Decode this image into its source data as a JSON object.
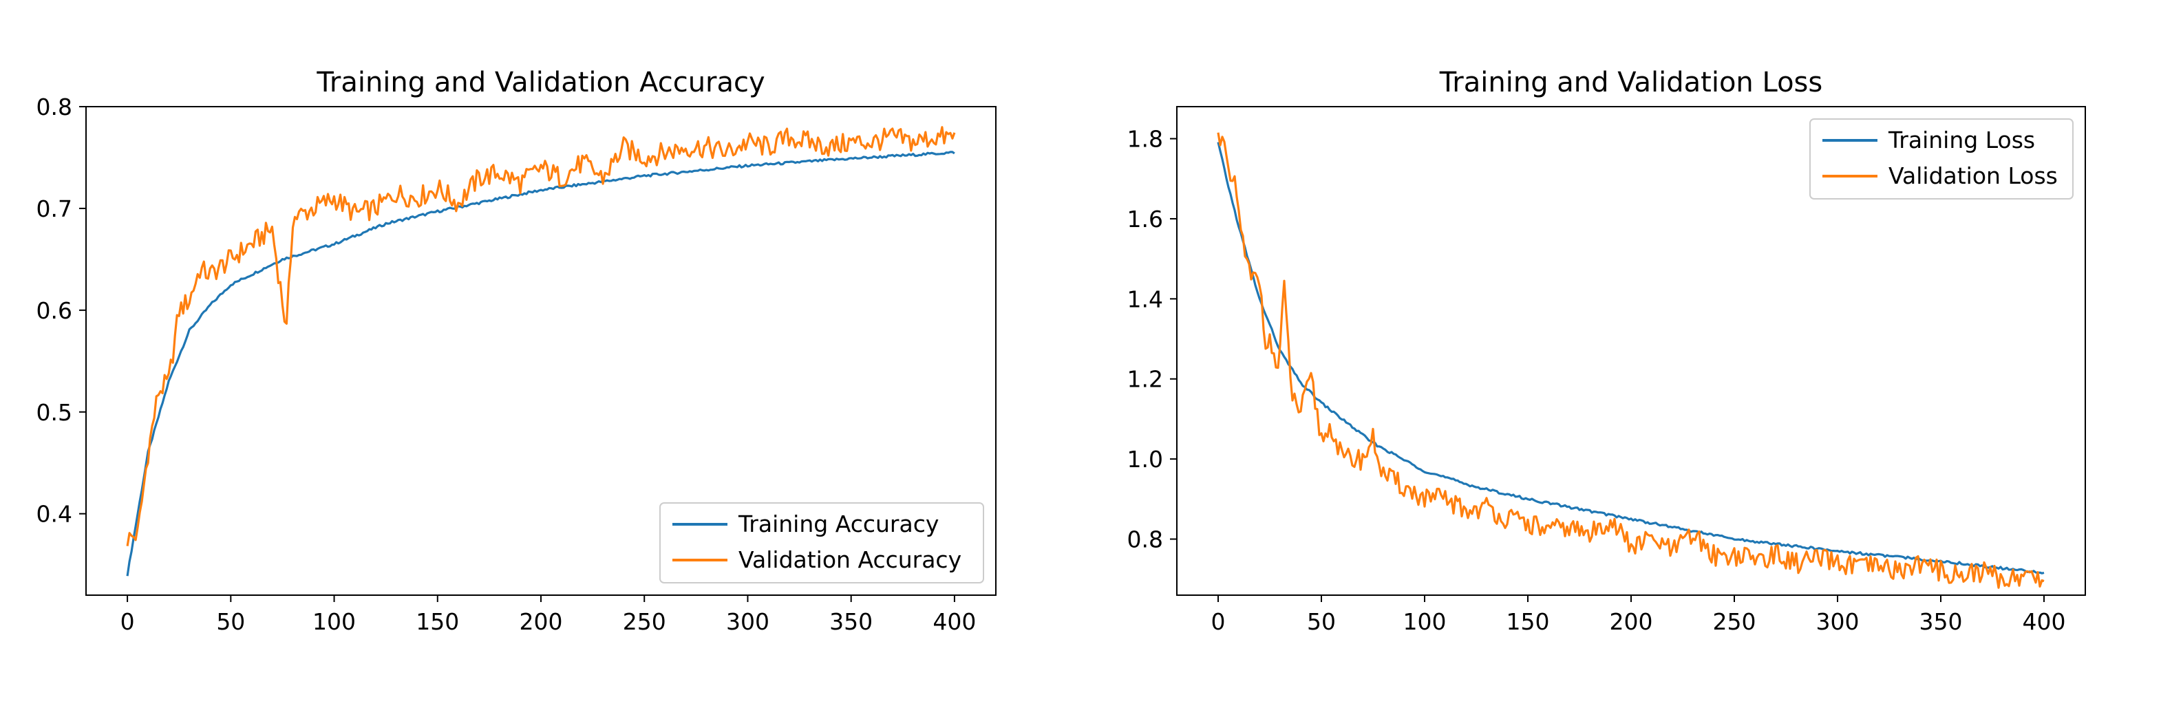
{
  "chart_data": [
    {
      "type": "line",
      "title": "Training and Validation Accuracy",
      "xlabel": "",
      "ylabel": "",
      "xlim": [
        -20,
        420
      ],
      "ylim": [
        0.32,
        0.8
      ],
      "xticks": [
        0,
        50,
        100,
        150,
        200,
        250,
        300,
        350,
        400
      ],
      "yticks": [
        0.4,
        0.5,
        0.6,
        0.7,
        0.8
      ],
      "ytick_labels": [
        "0.4",
        "0.5",
        "0.6",
        "0.7",
        "0.8"
      ],
      "grid": false,
      "legend_position": "lower right",
      "series": [
        {
          "name": "Training Accuracy",
          "color": "#1f77b4",
          "x": [
            0,
            5,
            10,
            20,
            30,
            40,
            50,
            75,
            100,
            125,
            150,
            200,
            250,
            300,
            350,
            400
          ],
          "y": [
            0.34,
            0.4,
            0.46,
            0.53,
            0.58,
            0.605,
            0.625,
            0.65,
            0.665,
            0.685,
            0.697,
            0.718,
            0.732,
            0.742,
            0.749,
            0.755
          ]
        },
        {
          "name": "Validation Accuracy",
          "color": "#ff7f0e",
          "x": [
            0,
            5,
            10,
            15,
            20,
            25,
            30,
            35,
            40,
            50,
            60,
            70,
            77,
            80,
            90,
            100,
            110,
            120,
            130,
            140,
            150,
            160,
            170,
            180,
            190,
            200,
            210,
            220,
            230,
            240,
            250,
            260,
            270,
            280,
            290,
            300,
            310,
            320,
            330,
            340,
            350,
            360,
            370,
            380,
            390,
            400
          ],
          "y": [
            0.375,
            0.38,
            0.46,
            0.52,
            0.53,
            0.6,
            0.61,
            0.64,
            0.635,
            0.65,
            0.665,
            0.68,
            0.58,
            0.69,
            0.7,
            0.71,
            0.695,
            0.7,
            0.715,
            0.71,
            0.72,
            0.705,
            0.73,
            0.735,
            0.725,
            0.74,
            0.73,
            0.745,
            0.73,
            0.76,
            0.75,
            0.755,
            0.76,
            0.76,
            0.755,
            0.765,
            0.76,
            0.77,
            0.765,
            0.76,
            0.765,
            0.765,
            0.77,
            0.765,
            0.77,
            0.77
          ]
        }
      ]
    },
    {
      "type": "line",
      "title": "Training and Validation Loss",
      "xlabel": "",
      "ylabel": "",
      "xlim": [
        -20,
        420
      ],
      "ylim": [
        0.66,
        1.88
      ],
      "xticks": [
        0,
        50,
        100,
        150,
        200,
        250,
        300,
        350,
        400
      ],
      "yticks": [
        0.8,
        1.0,
        1.2,
        1.4,
        1.6,
        1.8
      ],
      "ytick_labels": [
        "0.8",
        "1.0",
        "1.2",
        "1.4",
        "1.6",
        "1.8"
      ],
      "grid": false,
      "legend_position": "upper right",
      "series": [
        {
          "name": "Training Loss",
          "color": "#1f77b4",
          "x": [
            0,
            5,
            10,
            20,
            30,
            40,
            50,
            75,
            100,
            125,
            150,
            200,
            250,
            300,
            350,
            400
          ],
          "y": [
            1.79,
            1.68,
            1.58,
            1.4,
            1.27,
            1.19,
            1.14,
            1.04,
            0.97,
            0.93,
            0.9,
            0.85,
            0.8,
            0.77,
            0.745,
            0.715
          ]
        },
        {
          "name": "Validation Loss",
          "color": "#ff7f0e",
          "x": [
            0,
            2,
            5,
            8,
            10,
            13,
            16,
            20,
            23,
            26,
            29,
            32,
            36,
            40,
            45,
            50,
            55,
            60,
            70,
            75,
            80,
            90,
            100,
            110,
            120,
            130,
            140,
            150,
            160,
            170,
            180,
            190,
            200,
            210,
            220,
            230,
            240,
            250,
            260,
            270,
            280,
            290,
            300,
            310,
            320,
            330,
            340,
            350,
            360,
            370,
            380,
            390,
            400
          ],
          "y": [
            1.8,
            1.82,
            1.7,
            1.68,
            1.62,
            1.5,
            1.45,
            1.45,
            1.3,
            1.28,
            1.22,
            1.42,
            1.15,
            1.12,
            1.2,
            1.05,
            1.08,
            1.0,
            1.0,
            1.05,
            0.96,
            0.93,
            0.9,
            0.9,
            0.87,
            0.88,
            0.85,
            0.84,
            0.82,
            0.83,
            0.81,
            0.85,
            0.78,
            0.8,
            0.77,
            0.81,
            0.76,
            0.76,
            0.75,
            0.76,
            0.74,
            0.75,
            0.74,
            0.73,
            0.73,
            0.72,
            0.74,
            0.72,
            0.71,
            0.72,
            0.7,
            0.71,
            0.7
          ]
        }
      ]
    }
  ]
}
